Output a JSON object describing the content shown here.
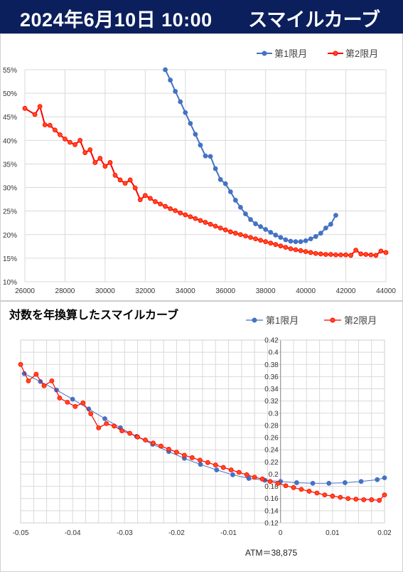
{
  "header": {
    "date": "2024年6月10日 10:00",
    "title": "スマイルカーブ"
  },
  "colors": {
    "header_bg": "#0b1f5c",
    "series1": "#4472c4",
    "series2": "#ff0000",
    "series2_fill": "#ff4a1a",
    "grid": "#d9d9d9"
  },
  "panel2": {
    "title": "対数を年換算したスマイルカーブ",
    "atm_label": "ATM＝38,875"
  },
  "chart_data": [
    {
      "type": "line",
      "title": "",
      "legend": "top-right",
      "grid": true,
      "xlim": [
        26000,
        44000
      ],
      "ylim": [
        10,
        55
      ],
      "xticks": [
        "26000",
        "28000",
        "30000",
        "32000",
        "34000",
        "36000",
        "38000",
        "40000",
        "42000",
        "44000"
      ],
      "yticks": [
        "10%",
        "15%",
        "20%",
        "25%",
        "30%",
        "35%",
        "40%",
        "45%",
        "50%",
        "55%"
      ],
      "series": [
        {
          "name": "第1限月",
          "x": [
            33000,
            33250,
            33500,
            33750,
            34000,
            34250,
            34500,
            34750,
            35000,
            35250,
            35500,
            35750,
            36000,
            36250,
            36500,
            36750,
            37000,
            37250,
            37500,
            37750,
            38000,
            38250,
            38500,
            38750,
            39000,
            39250,
            39500,
            39750,
            40000,
            40250,
            40500,
            40750,
            41000,
            41250,
            41500
          ],
          "y": [
            55.0,
            52.8,
            50.4,
            48.2,
            45.9,
            43.6,
            41.3,
            39.0,
            36.7,
            36.6,
            34.0,
            31.7,
            30.8,
            29.1,
            27.3,
            25.8,
            24.4,
            23.2,
            22.3,
            21.7,
            21.1,
            20.5,
            19.9,
            19.4,
            18.9,
            18.6,
            18.5,
            18.5,
            18.7,
            19.1,
            19.6,
            20.3,
            21.4,
            22.2,
            24.1
          ]
        },
        {
          "name": "第2限月",
          "x": [
            26000,
            26500,
            26750,
            27000,
            27250,
            27500,
            27750,
            28000,
            28250,
            28500,
            28750,
            29000,
            29250,
            29500,
            29750,
            30000,
            30250,
            30500,
            30750,
            31000,
            31250,
            31500,
            31750,
            32000,
            32250,
            32500,
            32750,
            33000,
            33250,
            33500,
            33750,
            34000,
            34250,
            34500,
            34750,
            35000,
            35250,
            35500,
            35750,
            36000,
            36250,
            36500,
            36750,
            37000,
            37250,
            37500,
            37750,
            38000,
            38250,
            38500,
            38750,
            39000,
            39250,
            39500,
            39750,
            40000,
            40250,
            40500,
            40750,
            41000,
            41250,
            41500,
            41750,
            42000,
            42250,
            42500,
            42750,
            43000,
            43250,
            43500,
            43750,
            44000
          ],
          "y": [
            46.8,
            45.5,
            47.2,
            43.3,
            43.2,
            42.2,
            41.2,
            40.3,
            39.6,
            39.1,
            40.0,
            37.4,
            38.0,
            35.3,
            36.2,
            34.5,
            35.3,
            32.6,
            31.6,
            30.9,
            31.6,
            29.9,
            27.4,
            28.3,
            27.7,
            27.0,
            26.5,
            26.0,
            25.5,
            25.1,
            24.6,
            24.2,
            23.8,
            23.4,
            23.0,
            22.6,
            22.2,
            21.8,
            21.4,
            21.0,
            20.6,
            20.3,
            20.0,
            19.7,
            19.4,
            19.1,
            18.8,
            18.5,
            18.2,
            17.9,
            17.6,
            17.3,
            17.0,
            16.8,
            16.6,
            16.4,
            16.2,
            16.0,
            15.9,
            15.8,
            15.8,
            15.7,
            15.7,
            15.7,
            15.6,
            16.7,
            15.9,
            15.8,
            15.7,
            15.6,
            16.5,
            16.2
          ]
        }
      ]
    },
    {
      "type": "line",
      "title": "対数を年換算したスマイルカーブ",
      "legend": "top-right",
      "grid": true,
      "xlim": [
        -0.05,
        0.02
      ],
      "ylim": [
        0.12,
        0.42
      ],
      "xticks": [
        "-0.05",
        "-0.04",
        "-0.03",
        "-0.02",
        "-0.01",
        "0",
        "0.01",
        "0.02"
      ],
      "yticks": [
        "0.12",
        "0.14",
        "0.16",
        "0.18",
        "0.2",
        "0.22",
        "0.24",
        "0.26",
        "0.28",
        "0.3",
        "0.32",
        "0.34",
        "0.36",
        "0.38",
        "0.4",
        "0.42"
      ],
      "series": [
        {
          "name": "第1限月",
          "x": [
            -0.0493,
            -0.0462,
            -0.0431,
            -0.04,
            -0.0369,
            -0.0338,
            -0.0308,
            -0.0277,
            -0.0246,
            -0.0215,
            -0.0185,
            -0.0154,
            -0.0123,
            -0.0092,
            -0.0061,
            -0.003,
            0.0,
            0.0031,
            0.0062,
            0.0093,
            0.0124,
            0.0155,
            0.0186,
            0.02
          ],
          "y": [
            0.365,
            0.352,
            0.338,
            0.323,
            0.307,
            0.291,
            0.276,
            0.262,
            0.249,
            0.237,
            0.226,
            0.216,
            0.207,
            0.199,
            0.193,
            0.19,
            0.188,
            0.186,
            0.185,
            0.185,
            0.186,
            0.188,
            0.191,
            0.194
          ]
        },
        {
          "name": "第2限月",
          "x": [
            -0.05,
            -0.0485,
            -0.047,
            -0.0455,
            -0.044,
            -0.0425,
            -0.041,
            -0.0395,
            -0.038,
            -0.0365,
            -0.035,
            -0.0335,
            -0.032,
            -0.0305,
            -0.029,
            -0.0275,
            -0.026,
            -0.0245,
            -0.023,
            -0.0215,
            -0.02,
            -0.0185,
            -0.017,
            -0.0155,
            -0.014,
            -0.0125,
            -0.011,
            -0.0095,
            -0.008,
            -0.0065,
            -0.005,
            -0.0035,
            -0.002,
            -0.0005,
            0.001,
            0.0025,
            0.004,
            0.0055,
            0.007,
            0.0085,
            0.01,
            0.0115,
            0.013,
            0.0145,
            0.016,
            0.0175,
            0.019,
            0.02
          ],
          "y": [
            0.38,
            0.353,
            0.364,
            0.345,
            0.353,
            0.325,
            0.318,
            0.311,
            0.317,
            0.299,
            0.276,
            0.283,
            0.279,
            0.271,
            0.267,
            0.261,
            0.256,
            0.251,
            0.246,
            0.241,
            0.236,
            0.231,
            0.227,
            0.223,
            0.219,
            0.215,
            0.211,
            0.207,
            0.203,
            0.199,
            0.195,
            0.192,
            0.188,
            0.185,
            0.181,
            0.178,
            0.175,
            0.172,
            0.169,
            0.166,
            0.164,
            0.162,
            0.16,
            0.159,
            0.158,
            0.158,
            0.157,
            0.166
          ]
        }
      ]
    }
  ]
}
